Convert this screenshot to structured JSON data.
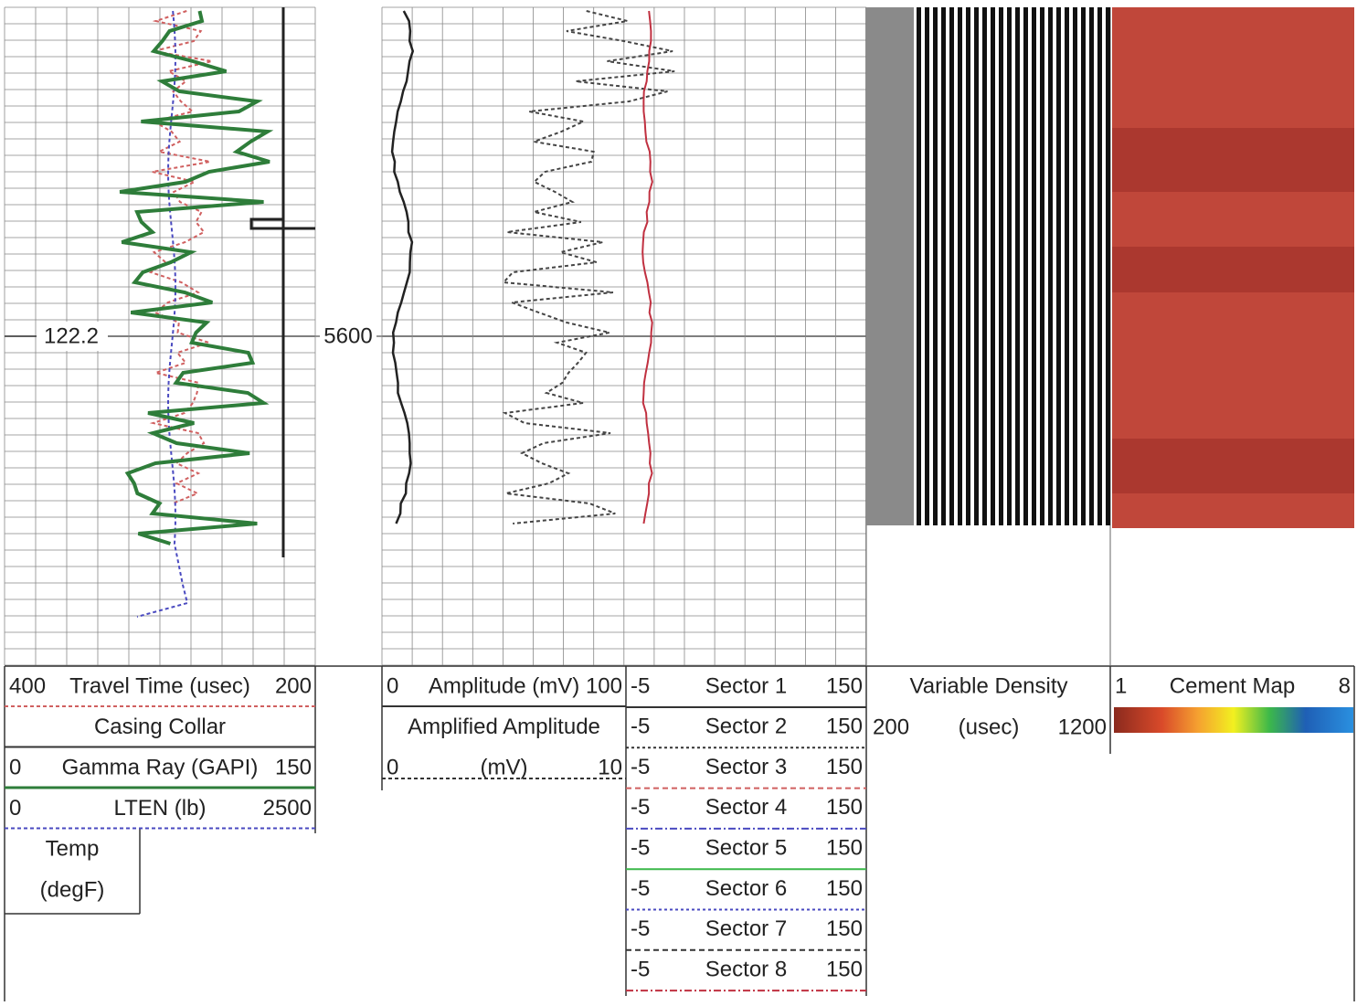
{
  "depth_labels": {
    "marker": "122.2",
    "depth": "5600"
  },
  "track1": {
    "rows": [
      {
        "left": "400",
        "title": "Travel Time (usec)",
        "right": "200"
      },
      {
        "title": "Casing Collar"
      },
      {
        "left": "0",
        "title": "Gamma Ray (GAPI)",
        "right": "150"
      },
      {
        "left": "0",
        "title": "LTEN (lb)",
        "right": "2500"
      }
    ],
    "temp": [
      "Temp",
      "(degF)"
    ]
  },
  "track2": {
    "rows": [
      {
        "left": "0",
        "title": "Amplitude (mV)",
        "right": "100"
      },
      {
        "title": "Amplified Amplitude"
      },
      {
        "left": "0",
        "title": "(mV)",
        "right": "10"
      }
    ]
  },
  "track3": {
    "rows": [
      {
        "left": "-5",
        "title": "Sector 1",
        "right": "150"
      },
      {
        "left": "-5",
        "title": "Sector 2",
        "right": "150"
      },
      {
        "left": "-5",
        "title": "Sector 3",
        "right": "150"
      },
      {
        "left": "-5",
        "title": "Sector 4",
        "right": "150"
      },
      {
        "left": "-5",
        "title": "Sector 5",
        "right": "150"
      },
      {
        "left": "-5",
        "title": "Sector 6",
        "right": "150"
      },
      {
        "left": "-5",
        "title": "Sector 7",
        "right": "150"
      },
      {
        "left": "-5",
        "title": "Sector 8",
        "right": "150"
      }
    ]
  },
  "vdl": {
    "title": "Variable Density",
    "left": "200",
    "unit": "(usec)",
    "right": "1200"
  },
  "cement": {
    "left": "1",
    "title": "Cement Map",
    "right": "8"
  }
}
